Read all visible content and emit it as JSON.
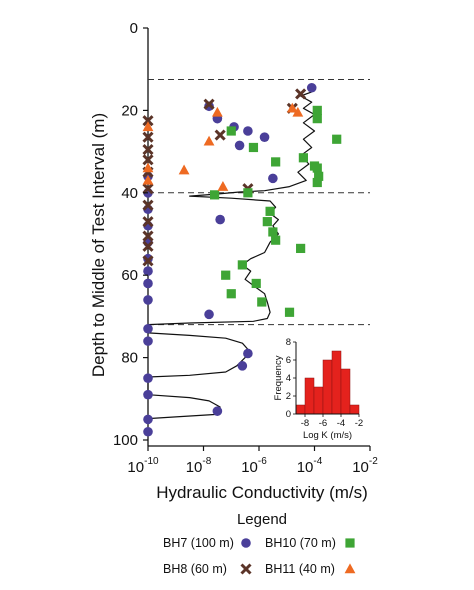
{
  "colors": {
    "bh7": "#4a3f99",
    "bh8": "#5b3428",
    "bh10": "#3ea535",
    "bh11": "#ee6a22",
    "profile": "#111111",
    "histogram": "#e4221d"
  },
  "chart_data": [
    {
      "type": "scatter",
      "xlabel": "Hydraulic Conductivity (m/s)",
      "ylabel": "Depth to Middle of Test Interval (m)",
      "x_scale": "log",
      "xlim": [
        1e-10,
        0.01
      ],
      "ylim": [
        100,
        0
      ],
      "y_inverted": true,
      "x_ticks": [
        {
          "base": "10",
          "exp": "-10"
        },
        {
          "base": "10",
          "exp": "-8"
        },
        {
          "base": "10",
          "exp": "-6"
        },
        {
          "base": "10",
          "exp": "-4"
        },
        {
          "base": "10",
          "exp": "-2"
        }
      ],
      "y_ticks": [
        "0",
        "20",
        "40",
        "60",
        "80",
        "100"
      ],
      "reference_lines_depth": [
        12.5,
        40,
        72
      ],
      "legend_title": "Legend",
      "series": [
        {
          "name": "BH7 (100 m)",
          "marker": "circle",
          "color_key": "bh7",
          "points": [
            {
              "logk": -10,
              "depth": 36
            },
            {
              "logk": -10,
              "depth": 40
            },
            {
              "logk": -10,
              "depth": 44
            },
            {
              "logk": -10,
              "depth": 48
            },
            {
              "logk": -10,
              "depth": 52
            },
            {
              "logk": -10,
              "depth": 56
            },
            {
              "logk": -10,
              "depth": 59
            },
            {
              "logk": -10,
              "depth": 62
            },
            {
              "logk": -10,
              "depth": 66
            },
            {
              "logk": -10,
              "depth": 73
            },
            {
              "logk": -10,
              "depth": 76
            },
            {
              "logk": -10,
              "depth": 85
            },
            {
              "logk": -10,
              "depth": 89
            },
            {
              "logk": -10,
              "depth": 95
            },
            {
              "logk": -10,
              "depth": 98
            },
            {
              "logk": -7.8,
              "depth": 19
            },
            {
              "logk": -7.5,
              "depth": 22
            },
            {
              "logk": -6.9,
              "depth": 24
            },
            {
              "logk": -6.4,
              "depth": 25
            },
            {
              "logk": -5.8,
              "depth": 26.5
            },
            {
              "logk": -6.7,
              "depth": 28.5
            },
            {
              "logk": -4.1,
              "depth": 14.5
            },
            {
              "logk": -5.5,
              "depth": 36.5
            },
            {
              "logk": -7.4,
              "depth": 46.5
            },
            {
              "logk": -7.8,
              "depth": 69.5
            },
            {
              "logk": -6.4,
              "depth": 79
            },
            {
              "logk": -6.6,
              "depth": 82
            },
            {
              "logk": -7.5,
              "depth": 93
            }
          ]
        },
        {
          "name": "BH8 (60 m)",
          "marker": "x",
          "color_key": "bh8",
          "points": [
            {
              "logk": -10,
              "depth": 22.5
            },
            {
              "logk": -10,
              "depth": 26.5
            },
            {
              "logk": -10,
              "depth": 29.5
            },
            {
              "logk": -10,
              "depth": 32
            },
            {
              "logk": -10,
              "depth": 35
            },
            {
              "logk": -10,
              "depth": 39
            },
            {
              "logk": -10,
              "depth": 43
            },
            {
              "logk": -10,
              "depth": 47
            },
            {
              "logk": -10,
              "depth": 50.5
            },
            {
              "logk": -10,
              "depth": 53
            },
            {
              "logk": -10,
              "depth": 56.5
            },
            {
              "logk": -7.8,
              "depth": 18.5
            },
            {
              "logk": -7.4,
              "depth": 26
            },
            {
              "logk": -6.4,
              "depth": 39
            },
            {
              "logk": -4.5,
              "depth": 16
            },
            {
              "logk": -4.8,
              "depth": 19.5
            }
          ]
        },
        {
          "name": "BH10 (70 m)",
          "marker": "square",
          "color_key": "bh10",
          "points": [
            {
              "logk": -7.0,
              "depth": 25
            },
            {
              "logk": -6.2,
              "depth": 29
            },
            {
              "logk": -6.4,
              "depth": 40
            },
            {
              "logk": -7.6,
              "depth": 40.5
            },
            {
              "logk": -5.4,
              "depth": 32.5
            },
            {
              "logk": -4.4,
              "depth": 31.5
            },
            {
              "logk": -4.0,
              "depth": 33.5
            },
            {
              "logk": -3.9,
              "depth": 34
            },
            {
              "logk": -3.85,
              "depth": 36
            },
            {
              "logk": -3.9,
              "depth": 37.5
            },
            {
              "logk": -3.9,
              "depth": 20
            },
            {
              "logk": -3.9,
              "depth": 22
            },
            {
              "logk": -3.2,
              "depth": 27
            },
            {
              "logk": -5.6,
              "depth": 44.5
            },
            {
              "logk": -5.7,
              "depth": 47
            },
            {
              "logk": -5.5,
              "depth": 49.5
            },
            {
              "logk": -5.4,
              "depth": 51.5
            },
            {
              "logk": -4.5,
              "depth": 53.5
            },
            {
              "logk": -6.6,
              "depth": 57.5
            },
            {
              "logk": -7.2,
              "depth": 60
            },
            {
              "logk": -6.1,
              "depth": 62
            },
            {
              "logk": -7.0,
              "depth": 64.5
            },
            {
              "logk": -5.9,
              "depth": 66.5
            },
            {
              "logk": -4.9,
              "depth": 69
            }
          ]
        },
        {
          "name": "BH11 (40 m)",
          "marker": "triangle",
          "color_key": "bh11",
          "points": [
            {
              "logk": -10,
              "depth": 24
            },
            {
              "logk": -10,
              "depth": 34
            },
            {
              "logk": -10,
              "depth": 37
            },
            {
              "logk": -7.5,
              "depth": 20.5
            },
            {
              "logk": -7.8,
              "depth": 27.5
            },
            {
              "logk": -8.7,
              "depth": 34.5
            },
            {
              "logk": -7.3,
              "depth": 38.5
            },
            {
              "logk": -4.8,
              "depth": 19.5
            },
            {
              "logk": -4.6,
              "depth": 20.5
            }
          ]
        }
      ],
      "profile_curve": [
        [
          -4.1,
          14.5
        ],
        [
          -4.1,
          15.5
        ],
        [
          -4.5,
          16.5
        ],
        [
          -4.1,
          18
        ],
        [
          -4.4,
          19.5
        ],
        [
          -4.0,
          21
        ],
        [
          -4.4,
          23
        ],
        [
          -4.0,
          25
        ],
        [
          -4.4,
          27
        ],
        [
          -4.1,
          29
        ],
        [
          -4.5,
          31
        ],
        [
          -4.2,
          33
        ],
        [
          -4.6,
          35
        ],
        [
          -4.3,
          37
        ],
        [
          -4.9,
          38.5
        ],
        [
          -5.8,
          39.5
        ],
        [
          -6.7,
          39.8
        ],
        [
          -7.5,
          40.3
        ],
        [
          -8.5,
          40.8
        ],
        [
          -7.0,
          41.3
        ],
        [
          -5.6,
          42
        ],
        [
          -5.4,
          43.5
        ],
        [
          -5.6,
          45
        ],
        [
          -5.3,
          46.5
        ],
        [
          -5.5,
          48
        ],
        [
          -5.3,
          50
        ],
        [
          -5.6,
          52
        ],
        [
          -5.8,
          54.5
        ],
        [
          -6.3,
          56
        ],
        [
          -6.6,
          57.5
        ],
        [
          -6.3,
          59
        ],
        [
          -6.5,
          61
        ],
        [
          -6.1,
          63
        ],
        [
          -5.8,
          64.5
        ],
        [
          -5.7,
          66.5
        ],
        [
          -5.6,
          69
        ],
        [
          -5.7,
          70.5
        ],
        [
          -6.2,
          71.2
        ],
        [
          -8.5,
          71.6
        ],
        [
          -10,
          72
        ],
        [
          -10,
          74
        ],
        [
          -8.5,
          74.6
        ],
        [
          -7.2,
          75.3
        ],
        [
          -6.6,
          76.5
        ],
        [
          -6.4,
          78
        ],
        [
          -6.5,
          80
        ],
        [
          -6.8,
          82
        ],
        [
          -7.2,
          83.5
        ],
        [
          -8.5,
          84.3
        ],
        [
          -10,
          84.7
        ],
        [
          -10,
          89
        ],
        [
          -8.5,
          89.7
        ],
        [
          -7.8,
          90.5
        ],
        [
          -7.4,
          92
        ],
        [
          -7.6,
          93.8
        ],
        [
          -9.0,
          94.4
        ],
        [
          -10,
          94.8
        ],
        [
          -10,
          96
        ]
      ]
    },
    {
      "type": "bar",
      "xlabel": "Log K (m/s)",
      "ylabel": "Frequency",
      "xlim": [
        -9,
        -2
      ],
      "ylim": [
        0,
        8
      ],
      "x_ticks": [
        "-8",
        "-6",
        "-4",
        "-2"
      ],
      "y_ticks": [
        "0",
        "2",
        "4",
        "6",
        "8"
      ],
      "bins": [
        {
          "from": -9,
          "to": -8,
          "value": 1
        },
        {
          "from": -8,
          "to": -7,
          "value": 4
        },
        {
          "from": -7,
          "to": -6,
          "value": 3
        },
        {
          "from": -6,
          "to": -5,
          "value": 6
        },
        {
          "from": -5,
          "to": -4,
          "value": 7
        },
        {
          "from": -4,
          "to": -3,
          "value": 5
        },
        {
          "from": -3,
          "to": -2,
          "value": 1
        }
      ]
    }
  ]
}
